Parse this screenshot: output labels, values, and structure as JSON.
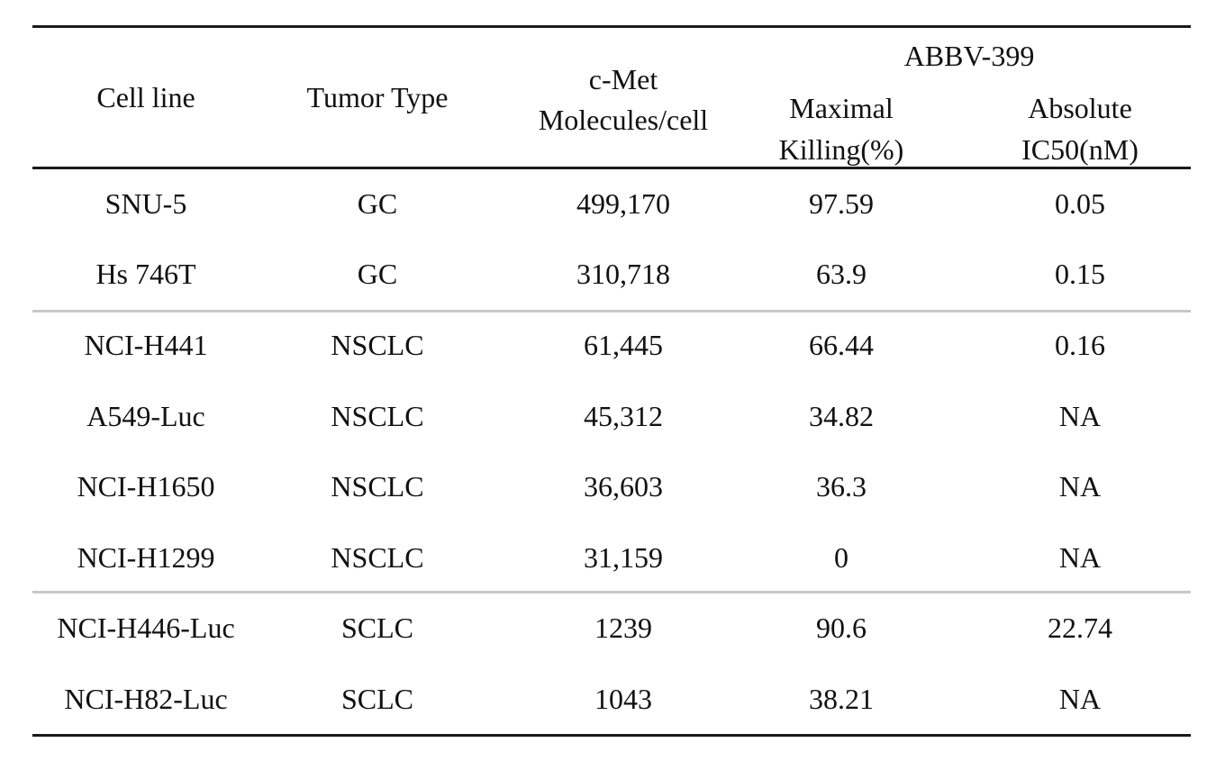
{
  "table": {
    "headers": {
      "cell_line": "Cell line",
      "tumor_type": "Tumor Type",
      "cmet_line1": "c-Met",
      "cmet_line2": "Molecules/cell",
      "group": "ABBV-399",
      "maximal_line1": "Maximal",
      "maximal_line2": "Killing(%)",
      "absolute_line1": "Absolute",
      "absolute_line2": "IC50(nM)"
    },
    "rows": [
      {
        "cell_line": "SNU-5",
        "tumor_type": "GC",
        "cmet": "499,170",
        "killing": "97.59",
        "ic50": "0.05"
      },
      {
        "cell_line": "Hs 746T",
        "tumor_type": "GC",
        "cmet": "310,718",
        "killing": "63.9",
        "ic50": "0.15"
      },
      {
        "cell_line": "NCI-H441",
        "tumor_type": "NSCLC",
        "cmet": "61,445",
        "killing": "66.44",
        "ic50": "0.16"
      },
      {
        "cell_line": "A549-Luc",
        "tumor_type": "NSCLC",
        "cmet": "45,312",
        "killing": "34.82",
        "ic50": "NA"
      },
      {
        "cell_line": "NCI-H1650",
        "tumor_type": "NSCLC",
        "cmet": "36,603",
        "killing": "36.3",
        "ic50": "NA"
      },
      {
        "cell_line": "NCI-H1299",
        "tumor_type": "NSCLC",
        "cmet": "31,159",
        "killing": "0",
        "ic50": "NA"
      },
      {
        "cell_line": "NCI-H446-Luc",
        "tumor_type": "SCLC",
        "cmet": "1239",
        "killing": "90.6",
        "ic50": "22.74"
      },
      {
        "cell_line": "NCI-H82-Luc",
        "tumor_type": "SCLC",
        "cmet": "1043",
        "killing": "38.21",
        "ic50": "NA"
      }
    ]
  }
}
